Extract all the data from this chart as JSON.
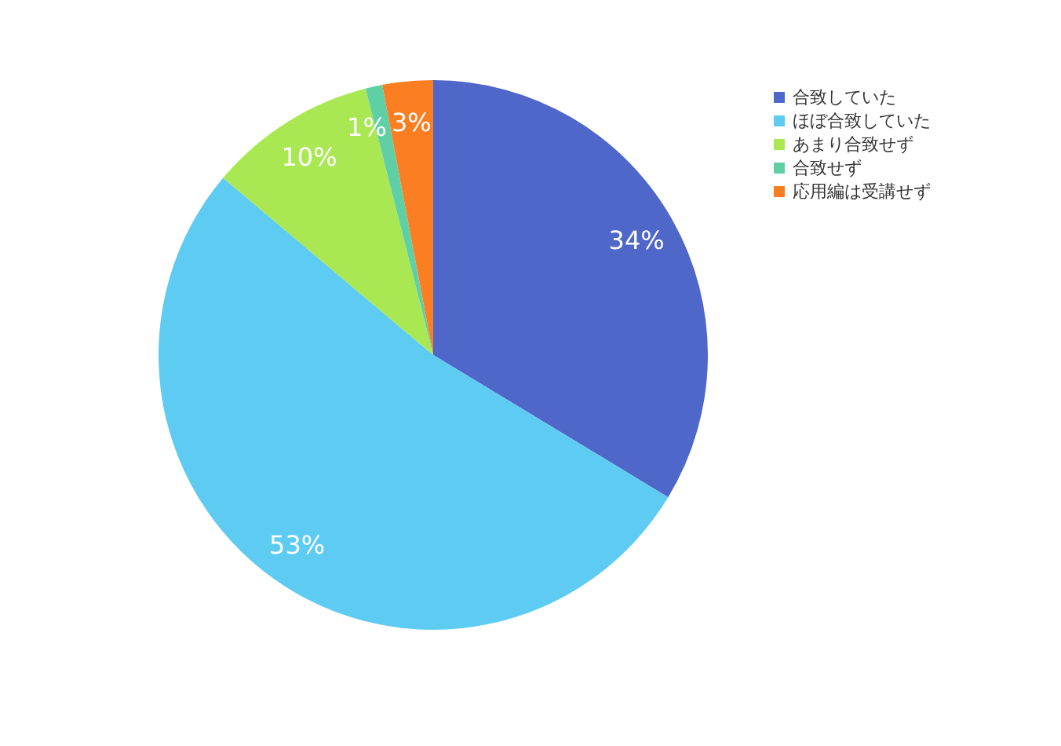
{
  "chart_data": {
    "type": "pie",
    "categories": [
      "合致していた",
      "ほぼ合致していた",
      "あまり合致せず",
      "合致せず",
      "応用編は受講せず"
    ],
    "values": [
      34,
      53,
      10,
      1,
      3
    ],
    "colors": [
      "#4f67c9",
      "#5ecbf3",
      "#a9e852",
      "#5fd0a6",
      "#fb7e22"
    ],
    "value_labels": [
      "34%",
      "53%",
      "10%",
      "1%",
      "3%"
    ],
    "legend": "top right"
  }
}
